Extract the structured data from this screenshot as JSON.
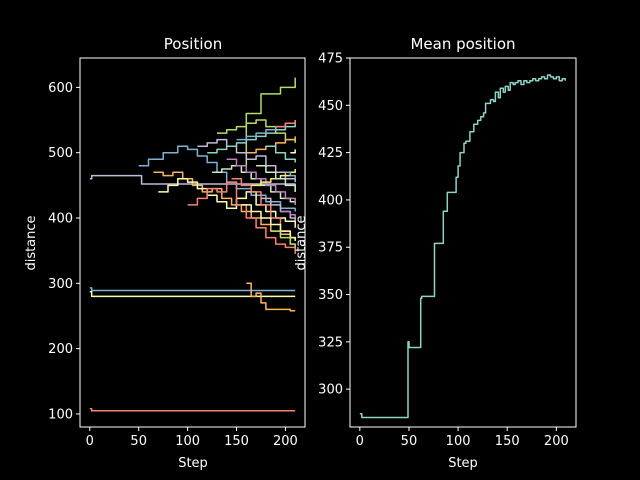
{
  "chart_data": [
    {
      "type": "line",
      "title": "Position",
      "xlabel": "Step",
      "ylabel": "distance",
      "xlim": [
        -10,
        220
      ],
      "ylim": [
        80,
        645
      ],
      "xticks": [
        0,
        50,
        100,
        150,
        200
      ],
      "yticks": [
        100,
        200,
        300,
        400,
        500,
        600
      ],
      "grid": false,
      "legend": "none",
      "colors": [
        "#8dd3c7",
        "#feffb3",
        "#bfbbd9",
        "#fa8174",
        "#81b1d2",
        "#fdb462",
        "#b3de69",
        "#bc82bd",
        "#ccebc4",
        "#ffed6f"
      ],
      "series": [
        {
          "color": "#fa8174",
          "x": [
            0,
            2,
            210
          ],
          "y": [
            108,
            105,
            105
          ]
        },
        {
          "color": "#81b1d2",
          "x": [
            0,
            2,
            210
          ],
          "y": [
            293,
            289,
            289
          ]
        },
        {
          "color": "#feffb3",
          "x": [
            0,
            2,
            210
          ],
          "y": [
            287,
            280,
            280
          ]
        },
        {
          "color": "#bfbbd9",
          "x": [
            0,
            2,
            50,
            53,
            205,
            210
          ],
          "y": [
            460,
            465,
            465,
            452,
            452,
            440
          ]
        },
        {
          "color": "#fdb462",
          "x": [
            160,
            165,
            170,
            175,
            180,
            200,
            205,
            210
          ],
          "y": [
            300,
            280,
            285,
            270,
            260,
            260,
            258,
            258
          ]
        },
        {
          "color": "#b3de69",
          "x": [
            150,
            160,
            175,
            195,
            210
          ],
          "y": [
            480,
            560,
            590,
            600,
            615
          ]
        },
        {
          "color": "#81b1d2",
          "x": [
            50,
            60,
            75,
            90,
            100,
            110,
            120,
            130,
            140,
            150,
            165,
            180,
            195,
            210
          ],
          "y": [
            480,
            490,
            500,
            510,
            505,
            495,
            485,
            470,
            455,
            445,
            435,
            425,
            415,
            410
          ]
        },
        {
          "color": "#fdb462",
          "x": [
            65,
            75,
            85,
            95,
            105,
            115,
            125,
            135,
            145,
            155,
            165,
            175,
            185,
            195,
            205,
            210
          ],
          "y": [
            470,
            465,
            470,
            460,
            450,
            440,
            445,
            430,
            420,
            410,
            400,
            390,
            380,
            375,
            370,
            365
          ]
        },
        {
          "color": "#feffb3",
          "x": [
            70,
            80,
            90,
            100,
            110,
            120,
            130,
            140,
            150,
            160,
            170,
            180,
            190,
            200,
            210
          ],
          "y": [
            440,
            450,
            460,
            455,
            445,
            435,
            425,
            415,
            430,
            440,
            420,
            410,
            400,
            395,
            385
          ]
        },
        {
          "color": "#fa8174",
          "x": [
            100,
            110,
            120,
            130,
            140,
            150,
            160,
            170,
            180,
            190,
            200,
            210
          ],
          "y": [
            420,
            430,
            445,
            440,
            455,
            420,
            400,
            385,
            370,
            360,
            355,
            345
          ]
        },
        {
          "color": "#bfbbd9",
          "x": [
            110,
            120,
            130,
            140,
            150,
            160,
            170,
            180,
            190,
            200,
            210
          ],
          "y": [
            510,
            515,
            520,
            510,
            500,
            490,
            495,
            480,
            470,
            460,
            455
          ]
        },
        {
          "color": "#8dd3c7",
          "x": [
            120,
            130,
            140,
            150,
            160,
            170,
            180,
            190,
            200,
            210
          ],
          "y": [
            500,
            505,
            510,
            515,
            520,
            525,
            530,
            535,
            540,
            545
          ]
        },
        {
          "color": "#ccebc4",
          "x": [
            125,
            135,
            145,
            155,
            165,
            175,
            185,
            195,
            205,
            210
          ],
          "y": [
            470,
            475,
            480,
            470,
            460,
            450,
            440,
            430,
            425,
            420
          ]
        },
        {
          "color": "#b3de69",
          "x": [
            130,
            140,
            150,
            160,
            170,
            180,
            190,
            200,
            210
          ],
          "y": [
            530,
            535,
            540,
            545,
            550,
            540,
            530,
            520,
            515
          ]
        },
        {
          "color": "#bc82bd",
          "x": [
            140,
            150,
            160,
            170,
            180,
            190,
            200,
            210
          ],
          "y": [
            490,
            480,
            470,
            460,
            450,
            440,
            430,
            420
          ]
        },
        {
          "color": "#fa8174",
          "x": [
            145,
            155,
            165,
            175,
            185,
            195,
            205,
            210
          ],
          "y": [
            460,
            450,
            440,
            420,
            400,
            380,
            360,
            350
          ]
        },
        {
          "color": "#81b1d2",
          "x": [
            150,
            160,
            170,
            180,
            190,
            200,
            210
          ],
          "y": [
            520,
            525,
            530,
            535,
            540,
            545,
            550
          ]
        },
        {
          "color": "#feffb3",
          "x": [
            155,
            165,
            175,
            185,
            195,
            205,
            210
          ],
          "y": [
            420,
            410,
            400,
            390,
            380,
            370,
            365
          ]
        },
        {
          "color": "#fdb462",
          "x": [
            160,
            170,
            180,
            190,
            200,
            210
          ],
          "y": [
            500,
            505,
            510,
            515,
            520,
            525
          ]
        },
        {
          "color": "#ffed6f",
          "x": [
            165,
            175,
            185,
            195,
            205,
            210
          ],
          "y": [
            450,
            455,
            460,
            465,
            470,
            475
          ]
        },
        {
          "color": "#ccebc4",
          "x": [
            170,
            180,
            190,
            200,
            210
          ],
          "y": [
            480,
            470,
            460,
            450,
            440
          ]
        },
        {
          "color": "#bfbbd9",
          "x": [
            175,
            185,
            195,
            205,
            210
          ],
          "y": [
            430,
            420,
            410,
            400,
            395
          ]
        },
        {
          "color": "#8dd3c7",
          "x": [
            180,
            190,
            200,
            210
          ],
          "y": [
            510,
            500,
            490,
            485
          ]
        },
        {
          "color": "#b3de69",
          "x": [
            185,
            195,
            205,
            210
          ],
          "y": [
            380,
            370,
            360,
            355
          ]
        },
        {
          "color": "#fa8174",
          "x": [
            190,
            200,
            210
          ],
          "y": [
            540,
            545,
            550
          ]
        },
        {
          "color": "#bc82bd",
          "x": [
            195,
            205,
            210
          ],
          "y": [
            410,
            405,
            400
          ]
        },
        {
          "color": "#81b1d2",
          "x": [
            200,
            205,
            210
          ],
          "y": [
            470,
            465,
            460
          ]
        },
        {
          "color": "#feffb3",
          "x": [
            205,
            210
          ],
          "y": [
            500,
            505
          ]
        }
      ]
    },
    {
      "type": "line",
      "title": "Mean position",
      "xlabel": "Step",
      "ylabel": "distance",
      "xlim": [
        -10,
        220
      ],
      "ylim": [
        280,
        475
      ],
      "xticks": [
        0,
        50,
        100,
        150,
        200
      ],
      "yticks": [
        300,
        325,
        350,
        375,
        400,
        425,
        450,
        475
      ],
      "grid": false,
      "legend": "none",
      "series": [
        {
          "color": "#8dd3c7",
          "x": [
            0,
            2,
            48,
            49,
            50,
            52,
            54,
            56,
            61,
            62,
            63,
            65,
            70,
            75,
            76,
            80,
            82,
            85,
            86,
            89,
            91,
            93,
            95,
            97,
            98,
            100,
            102,
            104,
            106,
            108,
            110,
            112,
            114,
            116,
            118,
            120,
            123,
            126,
            128,
            131,
            133,
            136,
            138,
            141,
            143,
            146,
            148,
            151,
            153,
            156,
            158,
            161,
            164,
            167,
            170,
            173,
            176,
            179,
            182,
            185,
            188,
            191,
            194,
            197,
            200,
            203,
            206,
            209
          ],
          "y": [
            287,
            285,
            285,
            325,
            322,
            322,
            322,
            322,
            322,
            348,
            349,
            349,
            349,
            349,
            377,
            377,
            377,
            394,
            394,
            404,
            404,
            404,
            404,
            404,
            412,
            418,
            425,
            425,
            430,
            431,
            431,
            436,
            436,
            440,
            440,
            442,
            444,
            446,
            451,
            451,
            453,
            452,
            457,
            454,
            459,
            457,
            460,
            458,
            462,
            461,
            462,
            463,
            461,
            463,
            462,
            463,
            464,
            463,
            464,
            465,
            464,
            466,
            465,
            464,
            465,
            463,
            464,
            463
          ]
        }
      ]
    }
  ]
}
